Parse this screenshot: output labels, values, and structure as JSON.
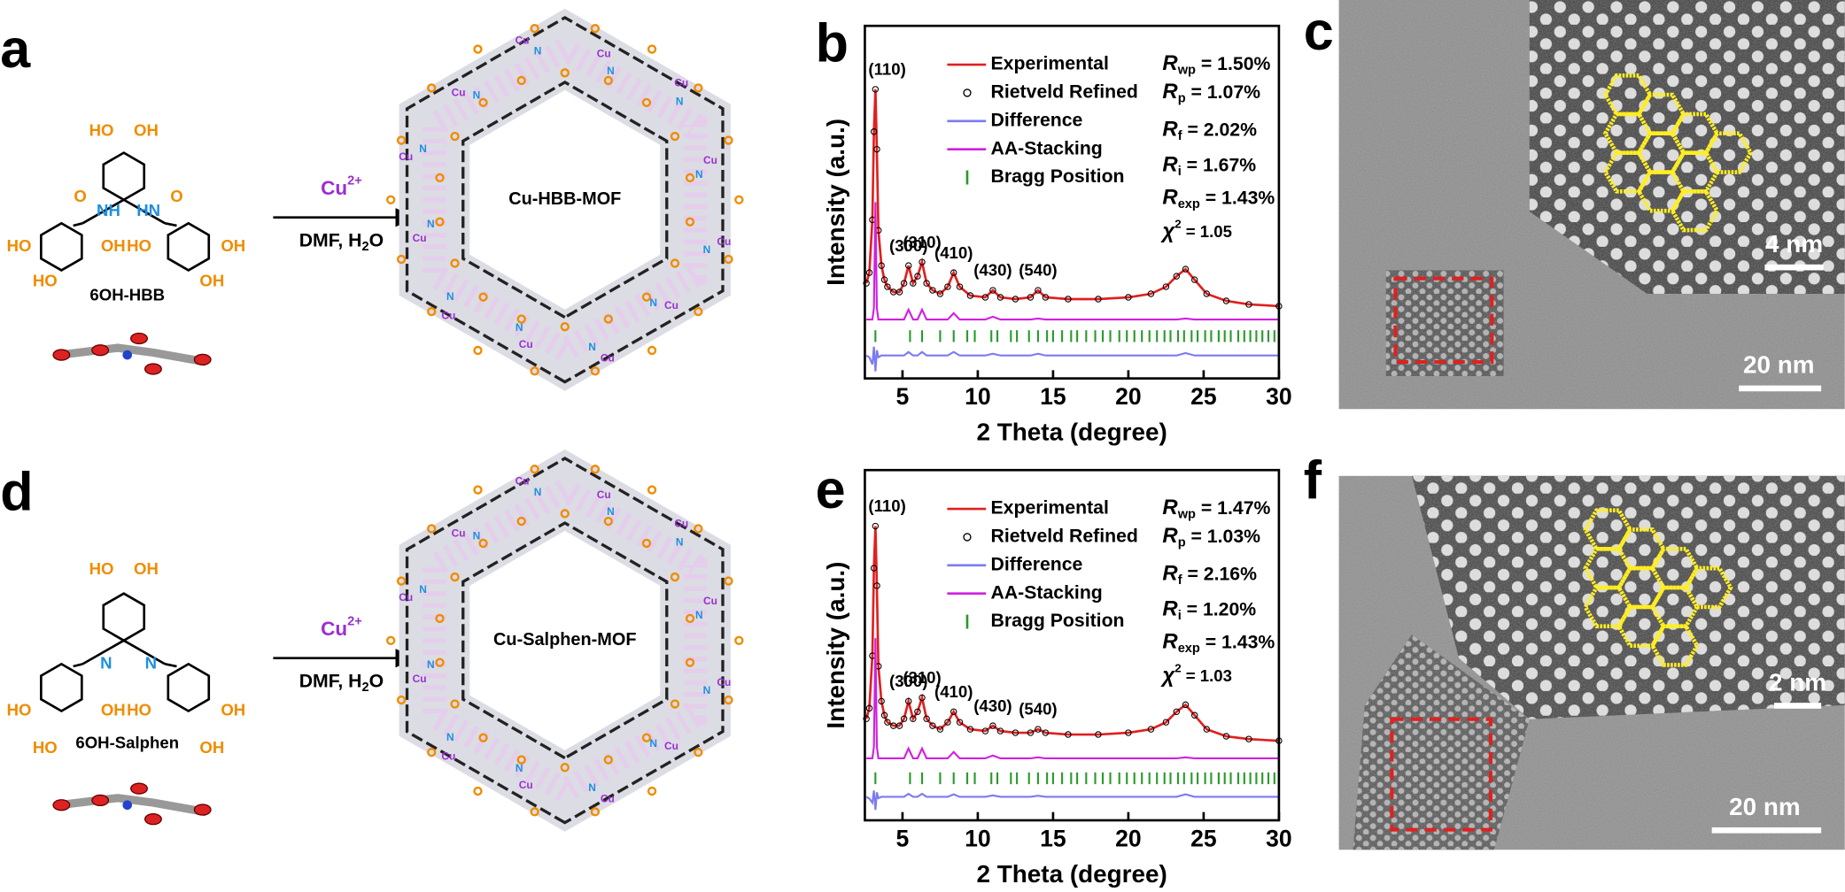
{
  "panels": {
    "a": {
      "label": "a",
      "reactant": "6OH-HBB",
      "catalyst": "Cu",
      "catalyst_sup": "2+",
      "solvent": "DMF, H",
      "solvent_sub": "2",
      "solvent_end": "O",
      "product": "Cu-HBB-MOF",
      "metal": "Cu",
      "nitrogen": "N",
      "atoms": [
        "HO",
        "OH",
        "O",
        "NH",
        "HN",
        "O",
        "HO",
        "OH",
        "HO",
        "OH",
        "HO",
        "OH"
      ]
    },
    "c": {
      "label": "c",
      "scale_inset": "4 nm",
      "scale_main": "20 nm"
    },
    "d": {
      "label": "d",
      "reactant": "6OH-Salphen",
      "catalyst": "Cu",
      "catalyst_sup": "2+",
      "solvent": "DMF, H",
      "solvent_sub": "2",
      "solvent_end": "O",
      "product": "Cu-Salphen-MOF",
      "metal": "Cu",
      "nitrogen": "N",
      "atoms": [
        "HO",
        "OH",
        "N",
        "N",
        "HO",
        "OH",
        "HO",
        "OH",
        "HO",
        "OH"
      ]
    },
    "f": {
      "label": "f",
      "scale_inset": "2 nm",
      "scale_main": "20 nm"
    }
  },
  "chart_data": [
    {
      "type": "line",
      "label": "b",
      "xlabel": "2 Theta (degree)",
      "ylabel": "Intensity (a.u.)",
      "xlim": [
        2.5,
        30
      ],
      "ylim": [
        0,
        100
      ],
      "xticks": [
        5,
        10,
        15,
        20,
        25,
        30
      ],
      "x": [
        2.6,
        2.8,
        3.0,
        3.1,
        3.2,
        3.3,
        3.4,
        3.6,
        3.8,
        4.0,
        4.4,
        4.8,
        5.1,
        5.4,
        5.7,
        6.0,
        6.3,
        6.6,
        7.0,
        7.5,
        8.0,
        8.4,
        8.8,
        9.5,
        10.5,
        11.0,
        11.5,
        12.5,
        13.5,
        14.0,
        14.5,
        16,
        18,
        20,
        21.5,
        22.5,
        23.2,
        23.8,
        24.4,
        25.2,
        26.5,
        28,
        30
      ],
      "series": [
        {
          "name": "Experimental",
          "color": "#e02020",
          "values": [
            27,
            30,
            45,
            70,
            82,
            65,
            42,
            32,
            28,
            26,
            24.5,
            24.5,
            27,
            32,
            27,
            29,
            33,
            27,
            25,
            24,
            26,
            30,
            26,
            23.5,
            23,
            25,
            23,
            22.5,
            23,
            25,
            23,
            22.5,
            22.5,
            23,
            24,
            26,
            29,
            31,
            28,
            24,
            22,
            21,
            20.5
          ]
        },
        {
          "name": "Rietveld Refined",
          "color": "#000000",
          "marker": "open-circle",
          "values": [
            27,
            30,
            45,
            70,
            82,
            65,
            42,
            32,
            28,
            26,
            24.5,
            24.5,
            27,
            32,
            27,
            29,
            33,
            27,
            25,
            24,
            26,
            30,
            26,
            23.5,
            23,
            25,
            23,
            22.5,
            23,
            25,
            23,
            22.5,
            22.5,
            23,
            24,
            26,
            29,
            31,
            28,
            24,
            22,
            21,
            20.5
          ]
        },
        {
          "name": "Difference",
          "color": "#7b7bf0",
          "values": [
            6.5,
            6,
            4,
            9,
            2,
            8,
            6,
            6.5,
            6.5,
            6.5,
            6.5,
            6.5,
            6.5,
            7.5,
            6.5,
            6.5,
            7.5,
            6.5,
            6.5,
            6.5,
            6.5,
            7.5,
            6.5,
            6.5,
            6.5,
            7,
            6.5,
            6.5,
            6.5,
            7,
            6.5,
            6.5,
            6.5,
            6.5,
            6.5,
            6.5,
            6.5,
            7.2,
            6.5,
            6.5,
            6.5,
            6.5,
            6.5
          ]
        },
        {
          "name": "AA-Stacking",
          "color": "#d020e0",
          "values": [
            16.7,
            16.7,
            16.7,
            20,
            50,
            20,
            16.7,
            16.7,
            16.7,
            16.7,
            16.7,
            16.7,
            16.7,
            19.5,
            16.7,
            16.7,
            19.5,
            16.7,
            16.7,
            16.7,
            16.7,
            18.5,
            16.7,
            16.7,
            16.7,
            17.5,
            16.7,
            16.7,
            16.7,
            17,
            16.7,
            16.7,
            16.7,
            16.7,
            16.7,
            16.7,
            16.7,
            17,
            16.7,
            16.7,
            16.7,
            16.7,
            16.7
          ]
        }
      ],
      "bragg": {
        "name": "Bragg Position",
        "color": "#2a9a2a",
        "positions": [
          3.2,
          5.5,
          6.3,
          7.5,
          8.4,
          9.3,
          9.8,
          10.9,
          11.3,
          12.2,
          12.6,
          13.4,
          14.0,
          14.6,
          15.0,
          15.6,
          16.2,
          16.6,
          17.2,
          17.8,
          18.3,
          18.8,
          19.4,
          19.9,
          20.4,
          20.9,
          21.4,
          21.9,
          22.4,
          22.8,
          23.3,
          23.7,
          24.2,
          24.6,
          25.1,
          25.5,
          26.0,
          26.4,
          26.8,
          27.3,
          27.7,
          28.1,
          28.5,
          28.9,
          29.3,
          29.7
        ]
      },
      "peaks": [
        {
          "label": "(110)",
          "x": 3.2
        },
        {
          "label": "(300)",
          "x": 5.4
        },
        {
          "label": "(310)",
          "x": 6.3
        },
        {
          "label": "(410)",
          "x": 8.4
        },
        {
          "label": "(430)",
          "x": 11.0
        },
        {
          "label": "(540)",
          "x": 14.0
        }
      ],
      "stats": [
        {
          "symbol": "R",
          "sub": "wp",
          "text": " = 1.50%"
        },
        {
          "symbol": "R",
          "sub": "p",
          "text": " = 1.07%"
        },
        {
          "symbol": "R",
          "sub": "f",
          "text": " = 2.02%"
        },
        {
          "symbol": "R",
          "sub": "i",
          "text": " = 1.67%"
        },
        {
          "symbol": "R",
          "sub": "exp",
          "text": " = 1.43%"
        },
        {
          "symbol": "χ",
          "sup": "2",
          "text": " = 1.05"
        }
      ]
    },
    {
      "type": "line",
      "label": "e",
      "xlabel": "2 Theta (degree)",
      "ylabel": "Intensity (a.u.)",
      "xlim": [
        2.5,
        30
      ],
      "ylim": [
        0,
        100
      ],
      "xticks": [
        5,
        10,
        15,
        20,
        25,
        30
      ],
      "x": [
        2.6,
        2.8,
        3.0,
        3.1,
        3.2,
        3.3,
        3.4,
        3.6,
        3.8,
        4.0,
        4.4,
        4.8,
        5.1,
        5.4,
        5.7,
        6.0,
        6.3,
        6.6,
        7.0,
        7.5,
        8.0,
        8.4,
        8.8,
        9.5,
        10.5,
        11.0,
        11.5,
        12.5,
        13.5,
        14.0,
        14.5,
        16,
        18,
        20,
        21.5,
        22.5,
        23.2,
        23.8,
        24.4,
        25.2,
        26.5,
        28,
        30
      ],
      "series": [
        {
          "name": "Experimental",
          "color": "#e02020",
          "values": [
            29,
            32,
            47,
            72,
            84,
            67,
            44,
            34,
            30,
            28,
            27,
            27,
            29,
            34,
            29,
            31,
            35,
            29,
            27,
            26,
            28,
            31,
            28,
            26,
            25.5,
            27,
            25.5,
            25,
            25,
            26,
            25,
            24.5,
            24.5,
            25,
            26,
            28,
            31,
            33,
            30,
            26,
            24,
            23.2,
            22.7
          ]
        },
        {
          "name": "Rietveld Refined",
          "color": "#000000",
          "marker": "open-circle",
          "values": [
            29,
            32,
            47,
            72,
            84,
            67,
            44,
            34,
            30,
            28,
            27,
            27,
            29,
            34,
            29,
            31,
            35,
            29,
            27,
            26,
            28,
            31,
            28,
            26,
            25.5,
            27,
            25.5,
            25,
            25,
            26,
            25,
            24.5,
            24.5,
            25,
            26,
            28,
            31,
            33,
            30,
            26,
            24,
            23.2,
            22.7
          ]
        },
        {
          "name": "Difference",
          "color": "#7b7bf0",
          "values": [
            6.7,
            6.2,
            5,
            8.5,
            3,
            8,
            6.3,
            6.7,
            6.7,
            6.7,
            6.7,
            6.7,
            6.7,
            7.6,
            6.7,
            6.7,
            7.6,
            6.7,
            6.7,
            6.7,
            6.7,
            7.4,
            6.7,
            6.7,
            6.7,
            7.1,
            6.7,
            6.7,
            6.7,
            7,
            6.7,
            6.7,
            6.7,
            6.7,
            6.7,
            6.7,
            6.7,
            7.4,
            6.7,
            6.7,
            6.7,
            6.7,
            6.7
          ]
        },
        {
          "name": "AA-Stacking",
          "color": "#d020e0",
          "values": [
            17.7,
            17.7,
            17.7,
            21,
            52,
            21,
            17.7,
            17.7,
            17.7,
            17.7,
            17.7,
            17.7,
            17.7,
            20.5,
            17.7,
            17.7,
            20.5,
            17.7,
            17.7,
            17.7,
            17.7,
            19.5,
            17.7,
            17.7,
            17.7,
            18.5,
            17.7,
            17.7,
            17.7,
            18,
            17.7,
            17.7,
            17.7,
            17.7,
            17.7,
            17.7,
            17.7,
            18,
            17.7,
            17.7,
            17.7,
            17.7,
            17.7
          ]
        }
      ],
      "bragg": {
        "name": "Bragg Position",
        "color": "#2a9a2a",
        "positions": [
          3.2,
          5.5,
          6.3,
          7.5,
          8.4,
          9.3,
          9.8,
          10.9,
          11.3,
          12.2,
          12.6,
          13.4,
          14.0,
          14.6,
          15.0,
          15.6,
          16.2,
          16.6,
          17.2,
          17.8,
          18.3,
          18.8,
          19.4,
          19.9,
          20.4,
          20.9,
          21.4,
          21.9,
          22.4,
          22.8,
          23.3,
          23.7,
          24.2,
          24.6,
          25.1,
          25.5,
          26.0,
          26.4,
          26.8,
          27.3,
          27.7,
          28.1,
          28.5,
          28.9,
          29.3,
          29.7
        ]
      },
      "peaks": [
        {
          "label": "(110)",
          "x": 3.2
        },
        {
          "label": "(300)",
          "x": 5.4
        },
        {
          "label": "(310)",
          "x": 6.3
        },
        {
          "label": "(410)",
          "x": 8.4
        },
        {
          "label": "(430)",
          "x": 11.0
        },
        {
          "label": "(540)",
          "x": 14.0
        }
      ],
      "stats": [
        {
          "symbol": "R",
          "sub": "wp",
          "text": " = 1.47%"
        },
        {
          "symbol": "R",
          "sub": "p",
          "text": " = 1.03%"
        },
        {
          "symbol": "R",
          "sub": "f",
          "text": " = 2.16%"
        },
        {
          "symbol": "R",
          "sub": "i",
          "text": " = 1.20%"
        },
        {
          "symbol": "R",
          "sub": "exp",
          "text": " = 1.43%"
        },
        {
          "symbol": "χ",
          "sup": "2",
          "text": " = 1.03"
        }
      ]
    }
  ]
}
